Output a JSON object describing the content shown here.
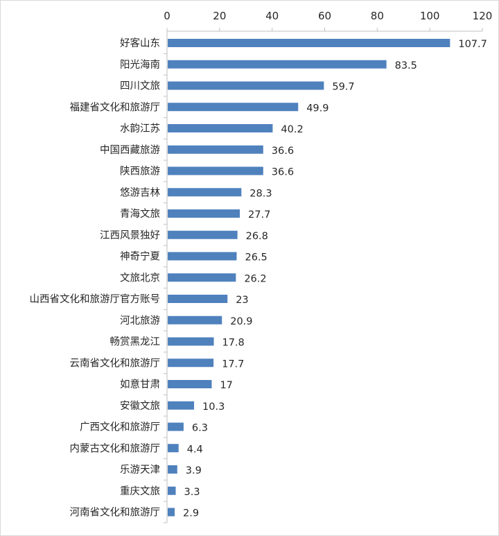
{
  "chart_data": {
    "type": "bar",
    "orientation": "horizontal",
    "title": "",
    "xlabel": "",
    "ylabel": "",
    "xlim": [
      0,
      120
    ],
    "x_ticks": [
      "0",
      "20",
      "40",
      "60",
      "80",
      "100",
      "120"
    ],
    "x_axis_position": "top",
    "grid": false,
    "legend": "none",
    "bar_color": "#4f81bd",
    "categories": [
      "好客山东",
      "阳光海南",
      "四川文旅",
      "福建省文化和旅游厅",
      "水韵江苏",
      "中国西藏旅游",
      "陕西旅游",
      "悠游吉林",
      "青海文旅",
      "江西风景独好",
      "神奇宁夏",
      "文旅北京",
      "山西省文化和旅游厅官方账号",
      "河北旅游",
      "畅赏黑龙江",
      "云南省文化和旅游厅",
      "如意甘肃",
      "安徽文旅",
      "广西文化和旅游厅",
      "内蒙古文化和旅游厅",
      "乐游天津",
      "重庆文旅",
      "河南省文化和旅游厅"
    ],
    "values": [
      107.7,
      83.5,
      59.7,
      49.9,
      40.2,
      36.6,
      36.6,
      28.3,
      27.7,
      26.8,
      26.5,
      26.2,
      23,
      20.9,
      17.8,
      17.7,
      17,
      10.3,
      6.3,
      4.4,
      3.9,
      3.3,
      2.9
    ],
    "value_labels": [
      "107.7",
      "83.5",
      "59.7",
      "49.9",
      "40.2",
      "36.6",
      "36.6",
      "28.3",
      "27.7",
      "26.8",
      "26.5",
      "26.2",
      "23",
      "20.9",
      "17.8",
      "17.7",
      "17",
      "10.3",
      "6.3",
      "4.4",
      "3.9",
      "3.3",
      "2.9"
    ]
  }
}
